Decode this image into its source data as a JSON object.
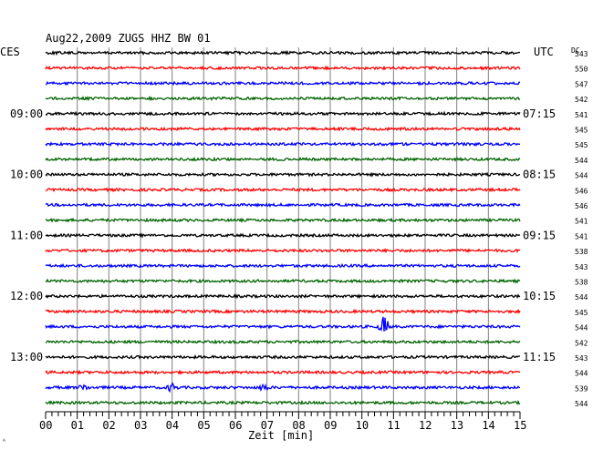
{
  "chart_data": {
    "type": "line",
    "title": "Aug22,2009   ZUGS HHZ BW 01",
    "left_label": "CES",
    "right_label": "UTC",
    "dc_label": "DC",
    "xlabel": "Zeit [min]",
    "x_ticks": [
      "00",
      "01",
      "02",
      "03",
      "04",
      "05",
      "06",
      "07",
      "08",
      "09",
      "10",
      "11",
      "12",
      "13",
      "14",
      "15"
    ],
    "xlim": [
      0,
      15
    ],
    "traces_per_hour": 4,
    "minutes_per_trace": 15,
    "trace_colors": [
      "#000000",
      "#ff0000",
      "#0000ff",
      "#006400"
    ],
    "left_time_labels": [
      {
        "trace": 4,
        "text": "09:00"
      },
      {
        "trace": 8,
        "text": "10:00"
      },
      {
        "trace": 12,
        "text": "11:00"
      },
      {
        "trace": 16,
        "text": "12:00"
      },
      {
        "trace": 20,
        "text": "13:00"
      }
    ],
    "right_time_labels": [
      {
        "trace": 4,
        "text": "07:15"
      },
      {
        "trace": 8,
        "text": "08:15"
      },
      {
        "trace": 12,
        "text": "09:15"
      },
      {
        "trace": 16,
        "text": "10:15"
      },
      {
        "trace": 20,
        "text": "11:15"
      }
    ],
    "dc_offsets": [
      "543",
      "550",
      "547",
      "542",
      "541",
      "545",
      "545",
      "544",
      "544",
      "546",
      "546",
      "541",
      "541",
      "538",
      "543",
      "538",
      "544",
      "545",
      "544",
      "542",
      "543",
      "544",
      "539",
      "544"
    ],
    "events": [
      {
        "trace": 18,
        "minute": 10.7,
        "amplitude": 3.0
      },
      {
        "trace": 22,
        "minute": 4.0,
        "amplitude": 1.2
      },
      {
        "trace": 22,
        "minute": 6.9,
        "amplitude": 0.9
      },
      {
        "trace": 22,
        "minute": 1.2,
        "amplitude": 0.7
      }
    ]
  },
  "corner_mark": "ᴬ"
}
